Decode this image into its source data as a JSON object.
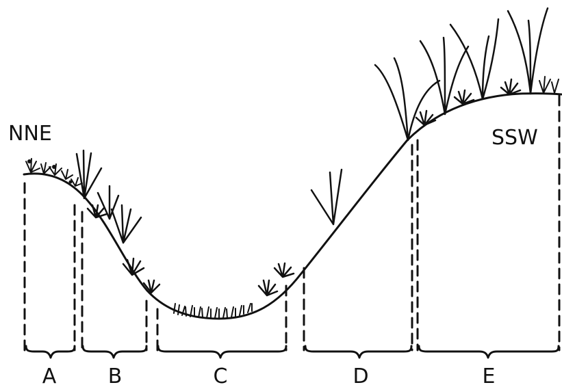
{
  "diagram": {
    "orientation_left": "NNE",
    "orientation_right": "SSW",
    "zones": [
      {
        "id": "zone-a",
        "label": "A"
      },
      {
        "id": "zone-b",
        "label": "B"
      },
      {
        "id": "zone-c",
        "label": "C"
      },
      {
        "id": "zone-d",
        "label": "D"
      },
      {
        "id": "zone-e",
        "label": "E"
      }
    ]
  }
}
